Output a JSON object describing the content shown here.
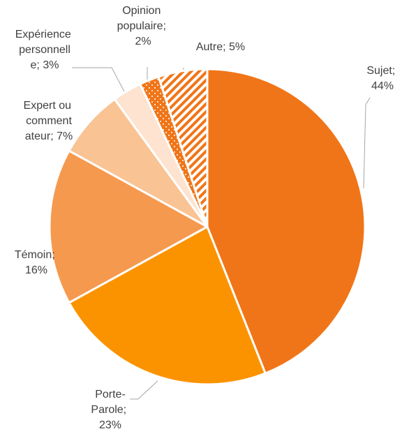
{
  "chart_data": {
    "type": "pie",
    "categories": [
      "Sujet",
      "Porte-Parole",
      "Témoin",
      "Expert ou commentateur",
      "Expérience personnelle",
      "Opinion populaire",
      "Autre"
    ],
    "values": [
      44,
      23,
      16,
      7,
      3,
      2,
      5
    ],
    "value_labels": [
      "Sujet; 44%",
      "Porte-Parole; 23%",
      "Témoin; 16%",
      "Expert ou commentateur; 7%",
      "Expérience personnelle; 3%",
      "Opinion populaire; 2%",
      "Autre; 5%"
    ],
    "colors": [
      "#f07518",
      "#fb9300",
      "#f5994f",
      "#f9c393",
      "#fde3d0",
      "#f07518",
      "#f07518"
    ],
    "patterns": [
      null,
      null,
      null,
      null,
      null,
      "dots",
      "stripes"
    ]
  }
}
